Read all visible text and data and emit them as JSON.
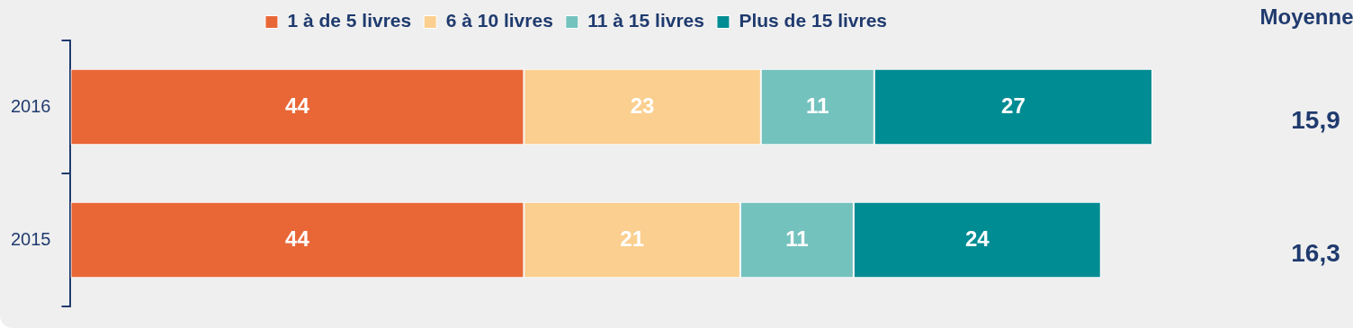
{
  "chart_data": {
    "type": "bar",
    "orientation": "horizontal",
    "stacked": true,
    "categories": [
      "2016",
      "2015"
    ],
    "series": [
      {
        "name": "1 à de 5 livres",
        "color": "#e96737",
        "values": [
          44,
          44
        ]
      },
      {
        "name": "6 à 10 livres",
        "color": "#fbcf8f",
        "values": [
          23,
          21
        ]
      },
      {
        "name": "11 à 15 livres",
        "color": "#74c2be",
        "values": [
          11,
          11
        ]
      },
      {
        "name": "Plus de 15 livres",
        "color": "#008c93",
        "values": [
          27,
          24
        ]
      }
    ],
    "xlim": [
      0,
      105
    ],
    "tick_labels": "y",
    "grid": false,
    "legend": "top",
    "data_labels": true,
    "annotations": [
      "Moyenne",
      "15,9",
      "16,3"
    ]
  }
}
